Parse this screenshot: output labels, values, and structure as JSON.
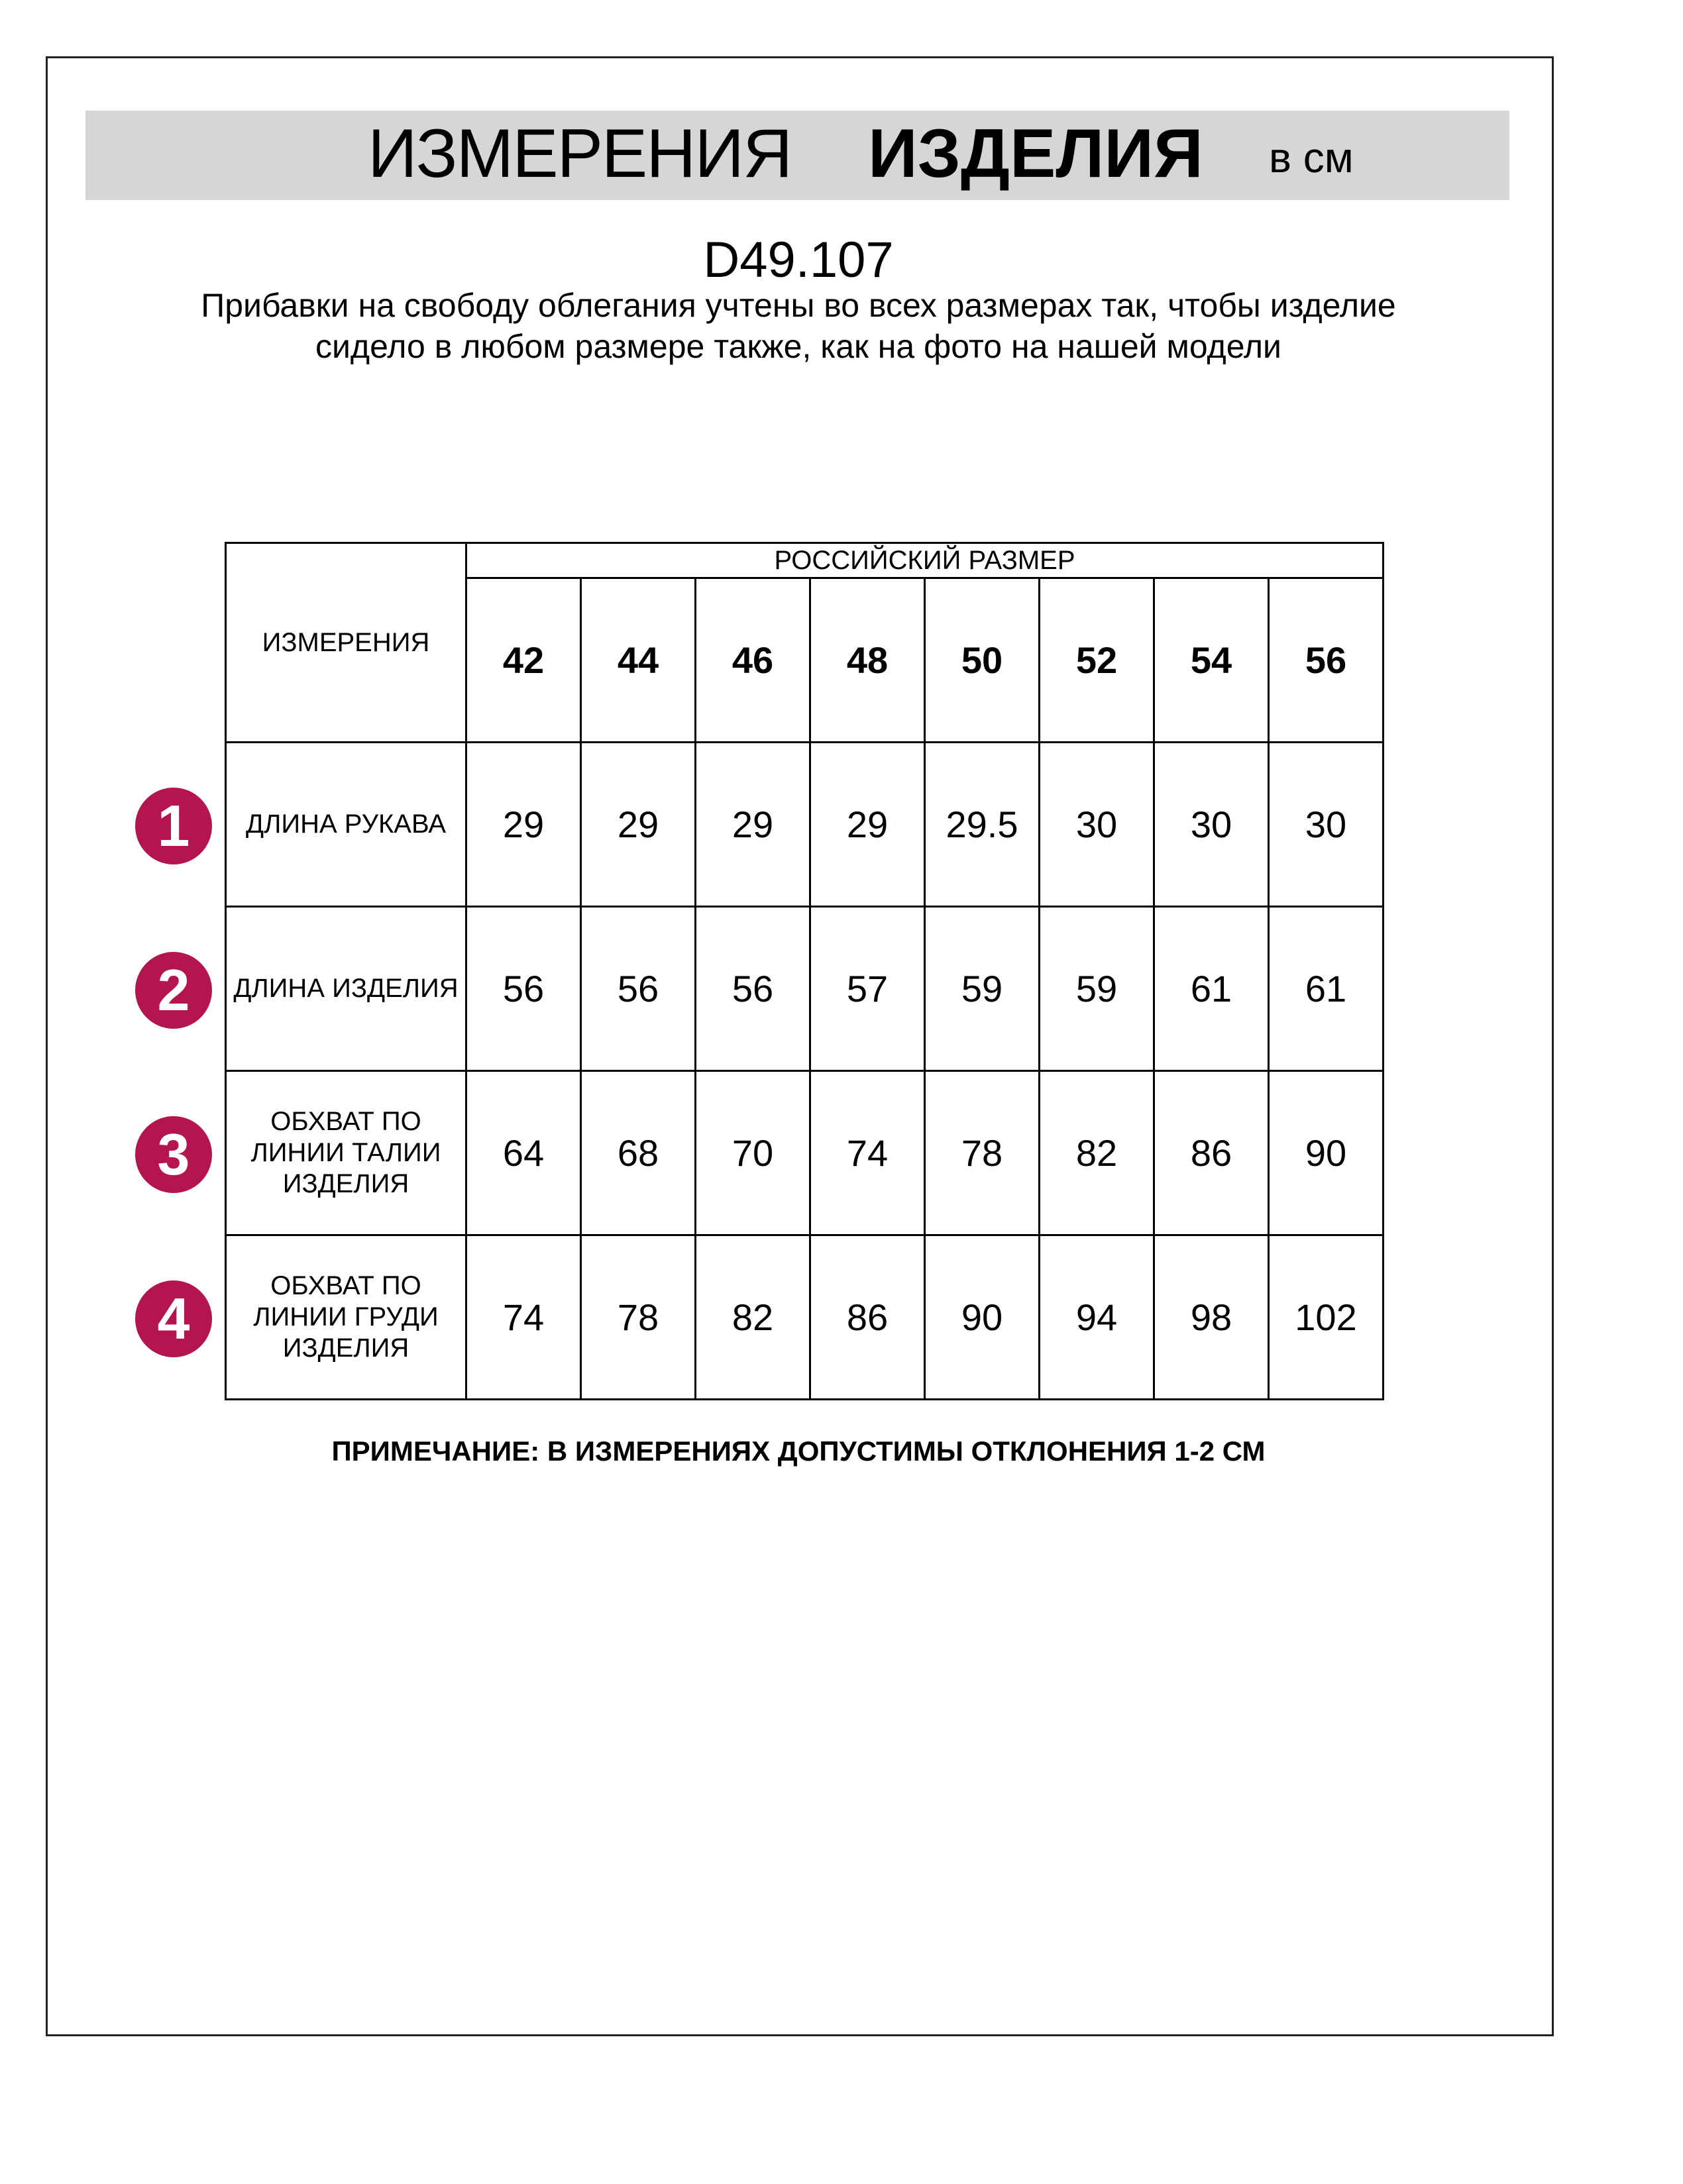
{
  "header": {
    "title_regular": "ИЗМЕРЕНИЯ",
    "title_bold": "ИЗДЕЛИЯ",
    "unit": "в см"
  },
  "product_code": "D49.107",
  "description": "Прибавки на свободу облегания учтены во всех размерах так, чтобы изделие сидело в любом размере также, как на фото на нашей модели",
  "table": {
    "measurements_header": "ИЗМЕРЕНИЯ",
    "size_group_header": "РОССИЙСКИЙ РАЗМЕР",
    "sizes": [
      "42",
      "44",
      "46",
      "48",
      "50",
      "52",
      "54",
      "56"
    ],
    "rows": [
      {
        "number": "1",
        "label": "ДЛИНА РУКАВА",
        "values": [
          "29",
          "29",
          "29",
          "29",
          "29.5",
          "30",
          "30",
          "30"
        ]
      },
      {
        "number": "2",
        "label": "ДЛИНА ИЗДЕЛИЯ",
        "values": [
          "56",
          "56",
          "56",
          "57",
          "59",
          "59",
          "61",
          "61"
        ]
      },
      {
        "number": "3",
        "label": "ОБХВАТ ПО ЛИНИИ ТАЛИИ ИЗДЕЛИЯ",
        "values": [
          "64",
          "68",
          "70",
          "74",
          "78",
          "82",
          "86",
          "90"
        ]
      },
      {
        "number": "4",
        "label": "ОБХВАТ ПО ЛИНИИ ГРУДИ ИЗДЕЛИЯ",
        "values": [
          "74",
          "78",
          "82",
          "86",
          "90",
          "94",
          "98",
          "102"
        ]
      }
    ]
  },
  "note": "ПРИМЕЧАНИЕ: В ИЗМЕРЕНИЯХ ДОПУСТИМЫ ОТКЛОНЕНИЯ 1-2 СМ",
  "colors": {
    "badge": "#b5154f",
    "band": "#d6d6d6"
  }
}
